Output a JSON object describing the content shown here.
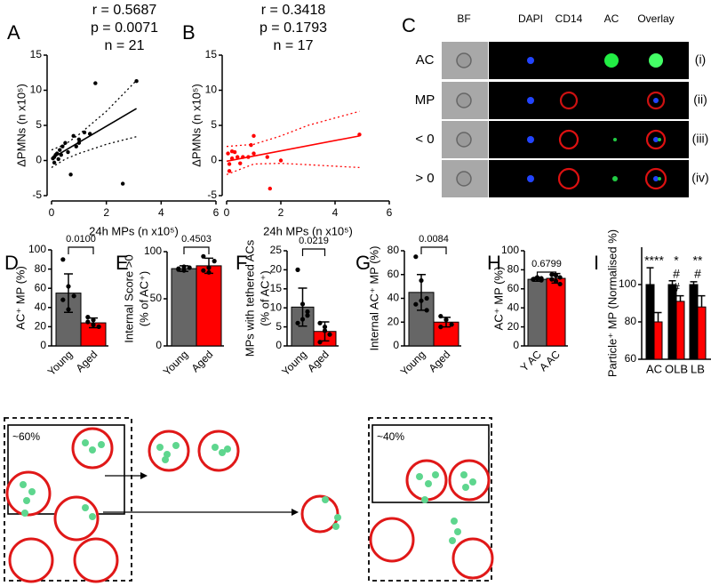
{
  "chart_data": [
    {
      "type": "scatter",
      "panel": "A",
      "annotations": [
        "r = 0.5687",
        "p = 0.0071",
        "n = 21"
      ],
      "annotation_color": "#000000",
      "color": "#000000",
      "x": [
        0.05,
        0.1,
        0.15,
        0.2,
        0.1,
        0.3,
        0.4,
        0.5,
        0.6,
        0.8,
        0.9,
        1.0,
        1.2,
        1.4,
        1.6,
        0.7,
        2.6,
        3.1,
        0.25,
        0.35,
        1.0
      ],
      "values": [
        0.3,
        0.5,
        0.8,
        1.0,
        -0.3,
        1.5,
        2.0,
        2.5,
        1.2,
        3.5,
        2.0,
        2.5,
        4.0,
        3.8,
        11.0,
        -2.0,
        -3.3,
        11.3,
        0.2,
        0.8,
        3.0
      ],
      "fit": {
        "x": [
          0,
          3.1
        ],
        "values": [
          0.3,
          7.4
        ]
      },
      "band_upper": {
        "x": [
          0,
          0.5,
          1,
          2,
          3.1
        ],
        "values": [
          1.5,
          2.3,
          3.7,
          7,
          11.4
        ]
      },
      "band_lower": {
        "x": [
          0,
          0.5,
          1,
          2,
          3.1
        ],
        "values": [
          -1,
          0.2,
          1,
          2.3,
          3.4
        ]
      },
      "xlim": [
        0,
        6
      ],
      "xticks": [
        0,
        2,
        4,
        6
      ],
      "ylim": [
        -5,
        15
      ],
      "yticks": [
        -5,
        0,
        5,
        10,
        15
      ],
      "xlabel": "24h MPs (n x10⁵)",
      "ylabel": "ΔPMNs (n x10⁵)"
    },
    {
      "type": "scatter",
      "panel": "B",
      "annotations": [
        "r = 0.3418",
        "p = 0.1793",
        "n = 17"
      ],
      "annotation_color": "#ff0000",
      "color": "#ff0000",
      "x": [
        0.05,
        0.1,
        0.1,
        0.2,
        0.3,
        0.4,
        0.5,
        0.6,
        0.8,
        0.9,
        1.0,
        1.0,
        1.5,
        1.6,
        2.0,
        4.9,
        0.2
      ],
      "values": [
        1.0,
        -0.5,
        -1.5,
        0.3,
        1.2,
        0.5,
        -0.4,
        0.5,
        0.5,
        2.2,
        3.5,
        1.0,
        0.5,
        -4.0,
        0.0,
        3.7,
        1.3
      ],
      "fit": {
        "x": [
          0,
          4.9
        ],
        "values": [
          -0.1,
          3.5
        ]
      },
      "band_upper": {
        "x": [
          0,
          1,
          2,
          3,
          4.9
        ],
        "values": [
          2,
          2.3,
          3.5,
          5,
          7
        ]
      },
      "band_lower": {
        "x": [
          0,
          1,
          2,
          3,
          4.9
        ],
        "values": [
          -2,
          -0.5,
          -0.4,
          -0.6,
          -1
        ]
      },
      "xlim": [
        0,
        6
      ],
      "xticks": [
        0,
        2,
        4,
        6
      ],
      "ylim": [
        -5,
        15
      ],
      "yticks": [
        -5,
        0,
        5,
        10,
        15
      ],
      "xlabel": "24h MPs (n x10⁵)",
      "ylabel": "ΔPMNs (n x10⁵)"
    },
    {
      "type": "bar",
      "panel": "D",
      "categories": [
        "Young",
        "Aged"
      ],
      "colors": [
        "#666666",
        "#ff0000"
      ],
      "values": [
        55,
        24
      ],
      "errors": [
        20,
        5
      ],
      "points": [
        [
          90,
          62,
          52,
          48,
          38
        ],
        [
          30,
          22,
          20,
          25,
          27
        ]
      ],
      "comparison": "0.0100",
      "ylim": [
        0,
        100
      ],
      "yticks": [
        0,
        20,
        40,
        60,
        80,
        100
      ],
      "ylabel": [
        "AC⁺ MP (%)"
      ]
    },
    {
      "type": "bar",
      "panel": "E",
      "categories": [
        "Young",
        "Aged"
      ],
      "colors": [
        "#666666",
        "#ff0000"
      ],
      "values": [
        82,
        85
      ],
      "errors": [
        3,
        8
      ],
      "points": [
        [
          82,
          80,
          83,
          81,
          84
        ],
        [
          80,
          83,
          90,
          95,
          78
        ]
      ],
      "comparison": "0.4503",
      "ylim": [
        0,
        100
      ],
      "yticks": [
        0,
        50,
        100
      ],
      "ylabel": [
        "Internal Score >0",
        "(% of AC⁺)"
      ]
    },
    {
      "type": "bar",
      "panel": "F",
      "categories": [
        "Young",
        "Aged"
      ],
      "colors": [
        "#666666",
        "#ff0000"
      ],
      "values": [
        10.2,
        3.8
      ],
      "errors": [
        5,
        2.5
      ],
      "points": [
        [
          20,
          11,
          9,
          6,
          7,
          8
        ],
        [
          6,
          5,
          3,
          1,
          4
        ]
      ],
      "comparison": "0.0219",
      "ylim": [
        0,
        25
      ],
      "yticks": [
        0,
        5,
        10,
        15,
        20,
        25
      ],
      "ylabel": [
        "MPs with tethered ACs",
        "(% of AC⁺)"
      ]
    },
    {
      "type": "bar",
      "panel": "G",
      "categories": [
        "Young",
        "Aged"
      ],
      "colors": [
        "#666666",
        "#ff0000"
      ],
      "values": [
        45,
        20
      ],
      "errors": [
        15,
        4
      ],
      "points": [
        [
          75,
          55,
          40,
          35,
          38,
          30
        ],
        [
          25,
          22,
          18,
          16
        ]
      ],
      "comparison": "0.0084",
      "ylim": [
        0,
        80
      ],
      "yticks": [
        0,
        20,
        40,
        60,
        80
      ],
      "ylabel": [
        "Internal AC⁺ MP (%)"
      ]
    },
    {
      "type": "bar",
      "panel": "H",
      "categories": [
        "Y AC",
        "A AC"
      ],
      "colors": [
        "#666666",
        "#ff0000"
      ],
      "values": [
        70,
        71
      ],
      "errors": [
        2,
        5
      ],
      "points": [
        [
          70,
          71,
          69,
          70,
          72,
          71
        ],
        [
          75,
          68,
          72,
          70,
          74,
          65
        ]
      ],
      "comparison": "0.6799",
      "ylim": [
        0,
        100
      ],
      "yticks": [
        0,
        20,
        40,
        60,
        80,
        100
      ],
      "ylabel": [
        "AC⁺ MP (%)"
      ]
    },
    {
      "type": "grouped_bar",
      "panel": "I",
      "categories": [
        "AC",
        "OLB",
        "LB"
      ],
      "series": [
        {
          "color": "#000000",
          "values": [
            100,
            100,
            100
          ],
          "errors": [
            9,
            2,
            1.5
          ]
        },
        {
          "color": "#ff0000",
          "values": [
            80,
            91,
            88
          ],
          "errors": [
            5,
            3,
            6
          ]
        }
      ],
      "annotations": [
        [
          "****"
        ],
        [
          "*",
          "#",
          "#"
        ],
        [
          "**",
          "#"
        ]
      ],
      "ylim": [
        60,
        120
      ],
      "yticks": [
        60,
        80,
        100
      ],
      "ylabel": [
        "Particle⁺ MP (Normalised %)"
      ]
    }
  ],
  "panel_c": {
    "panel": "C",
    "columns": [
      "BF",
      "DAPI",
      "CD14",
      "AC",
      "Overlay"
    ],
    "column_colors": [
      "#000000",
      "#0000ff",
      "#ff0000",
      "#00cc00",
      "#000000"
    ],
    "rows": [
      "AC",
      "MP",
      "< 0",
      "> 0"
    ],
    "row_tags": [
      "(i)",
      "(ii)",
      "(iii)",
      "(iv)"
    ]
  },
  "diagram": {
    "left_box": "~60%",
    "right_box": "~40%"
  }
}
